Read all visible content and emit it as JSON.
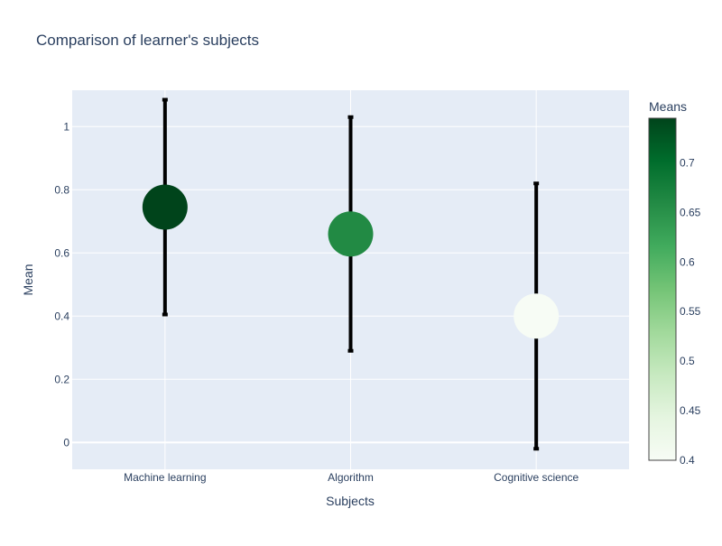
{
  "chart_data": {
    "type": "scatter",
    "title": "Comparison of learner's subjects",
    "xlabel": "Subjects",
    "ylabel": "Mean",
    "categories": [
      "Machine learning",
      "Algorithm",
      "Cognitive science"
    ],
    "values": [
      0.745,
      0.66,
      0.4
    ],
    "error": [
      0.34,
      0.37,
      0.42
    ],
    "ylim": [
      -0.085,
      1.115
    ],
    "yticks": [
      0,
      0.2,
      0.4,
      0.6,
      0.8,
      1
    ],
    "ytick_labels": [
      "0",
      "0.2",
      "0.4",
      "0.6",
      "0.8",
      "1"
    ],
    "grid": true,
    "colorbar": {
      "title": "Means",
      "range": [
        0.4,
        0.745
      ],
      "ticks": [
        0.4,
        0.45,
        0.5,
        0.55,
        0.6,
        0.65,
        0.7
      ],
      "tick_labels": [
        "0.4",
        "0.45",
        "0.5",
        "0.55",
        "0.6",
        "0.65",
        "0.7"
      ],
      "colorscale": "Greens"
    },
    "colors": {
      "plot_bg": "#e5ecf6",
      "grid": "#ffffff",
      "text": "#2a3f5f",
      "error_bar": "#000000",
      "greens_low": "#f7fcf5",
      "greens_high": "#00441b"
    }
  }
}
